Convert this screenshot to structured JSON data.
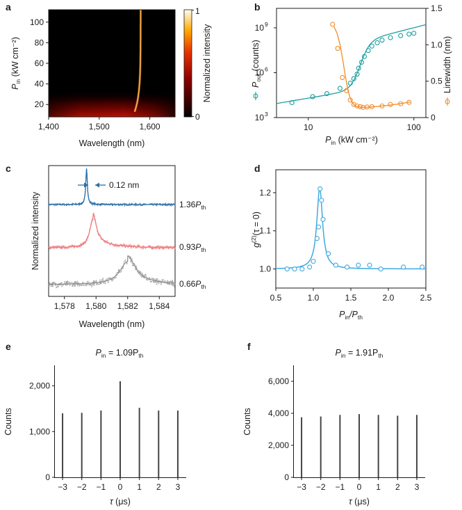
{
  "colors": {
    "teal": "#1e9d9d",
    "orange": "#f08c2a",
    "blue_dark": "#2a6fa8",
    "pink": "#ee7f7f",
    "gray": "#8a8a8a",
    "light_blue": "#3fa9e0",
    "hist": "#444444"
  },
  "chart_data": [
    {
      "panel": "a",
      "type": "heatmap",
      "xlabel": "Wavelength (nm)",
      "ylabel": {
        "main": "P",
        "sub": "in",
        "rest": " (kW cm⁻²)"
      },
      "xlim": [
        1400,
        1650
      ],
      "ylim": [
        8,
        112
      ],
      "xticks": [
        1400,
        1500,
        1600
      ],
      "xtick_labels": [
        "1,400",
        "1,500",
        "1,600"
      ],
      "yticks": [
        20,
        40,
        60,
        80,
        100
      ],
      "colorbar": {
        "label": "Normalized intensity",
        "ticks": [
          0,
          1
        ],
        "tick_labels": [
          "0",
          "1"
        ]
      },
      "lasing_line": {
        "wavelength_low_pin": 1570,
        "wavelength_high_pin": 1582
      }
    },
    {
      "panel": "b",
      "type": "scatter",
      "xscale": "log",
      "xlim": [
        5,
        130
      ],
      "xticks": [
        10,
        100
      ],
      "xtick_labels": [
        "10",
        "100"
      ],
      "xlabel": {
        "main": "P",
        "sub": "in",
        "rest": " (kW cm⁻²)"
      },
      "yleft": {
        "scale": "log",
        "lim": [
          1000,
          20000000000
        ],
        "ticks": [
          1000,
          1000000,
          1000000000
        ],
        "tick_labels": [
          [
            "10",
            "3"
          ],
          [
            "10",
            "6"
          ],
          [
            "10",
            "9"
          ]
        ],
        "label": {
          "main": "P",
          "sub": "out",
          "rest": " (counts)"
        }
      },
      "yright": {
        "lim": [
          0,
          1.5
        ],
        "ticks": [
          0,
          0.5,
          1.0,
          1.5
        ],
        "tick_labels": [
          "0",
          "0.5",
          "1.0",
          "1.5"
        ],
        "label": "Linewidth (nm)"
      },
      "series": [
        {
          "name": "Pout",
          "axis": "left",
          "x": [
            7,
            11,
            15,
            20,
            25,
            27,
            29,
            30,
            32,
            34,
            37,
            40,
            45,
            50,
            60,
            75,
            90,
            100
          ],
          "y": [
            10000,
            25000,
            40000,
            90000,
            200000,
            400000,
            800000,
            2000000,
            5000000,
            12000000,
            30000000,
            60000000,
            100000000,
            150000000,
            220000000,
            300000000,
            380000000,
            430000000
          ]
        },
        {
          "name": "Linewidth",
          "axis": "right",
          "x": [
            17,
            19,
            21,
            23,
            25,
            27,
            29,
            31,
            33,
            36,
            40,
            50,
            60,
            75,
            90
          ],
          "y": [
            1.28,
            0.95,
            0.55,
            0.37,
            0.24,
            0.18,
            0.16,
            0.15,
            0.14,
            0.145,
            0.15,
            0.16,
            0.18,
            0.19,
            0.21
          ]
        }
      ]
    },
    {
      "panel": "c",
      "type": "line",
      "xlabel": "Wavelength (nm)",
      "ylabel": "Normalized intensity",
      "xlim": [
        1577,
        1585
      ],
      "xticks": [
        1578,
        1580,
        1582,
        1584
      ],
      "xtick_labels": [
        "1,578",
        "1,580",
        "1,582",
        "1,584"
      ],
      "annotation": "0.12 nm",
      "series": [
        {
          "name": "1.36",
          "sub": "th",
          "center": 1579.4,
          "fwhm": 0.12
        },
        {
          "name": "0.93",
          "sub": "th",
          "center": 1579.8,
          "fwhm": 0.5
        },
        {
          "name": "0.66",
          "sub": "th",
          "center": 1582.0,
          "fwhm": 1.2
        }
      ]
    },
    {
      "panel": "d",
      "type": "scatter",
      "xlabel": {
        "a": "P",
        "a_sub": "in",
        "b": "/P",
        "b_sub": "th"
      },
      "ylabel": {
        "g": "g",
        "sup": "(2)",
        "rest": "(τ = 0)"
      },
      "xlim": [
        0.5,
        2.5
      ],
      "ylim": [
        0.95,
        1.26
      ],
      "xticks": [
        0.5,
        1.0,
        1.5,
        2.0,
        2.5
      ],
      "xtick_labels": [
        "0.5",
        "1.0",
        "1.5",
        "2.0",
        "2.5"
      ],
      "yticks": [
        1.0,
        1.1,
        1.2
      ],
      "ytick_labels": [
        "1.0",
        "1.1",
        "1.2"
      ],
      "series": [
        {
          "name": "g2",
          "x": [
            0.65,
            0.75,
            0.85,
            0.95,
            1.0,
            1.05,
            1.07,
            1.09,
            1.11,
            1.13,
            1.2,
            1.3,
            1.45,
            1.6,
            1.75,
            1.9,
            2.2,
            2.45
          ],
          "y": [
            1.0,
            1.0,
            1.0,
            1.005,
            1.02,
            1.08,
            1.11,
            1.21,
            1.18,
            1.13,
            1.04,
            1.01,
            1.005,
            1.01,
            1.01,
            1.0,
            1.005,
            1.005
          ]
        }
      ]
    },
    {
      "panel": "e",
      "type": "bar",
      "title": {
        "main": "P",
        "sub": "in",
        "mid": " = 1.09P",
        "sub2": "th"
      },
      "xlabel": {
        "tau": "τ",
        "rest": " (μs)"
      },
      "ylabel": "Counts",
      "xlim": [
        -3.4,
        3.4
      ],
      "ylim": [
        0,
        2450
      ],
      "xticks": [
        -3,
        -2,
        -1,
        0,
        1,
        2,
        3
      ],
      "xtick_labels": [
        "−3",
        "−2",
        "−1",
        "0",
        "1",
        "2",
        "3"
      ],
      "yticks": [
        0,
        1000,
        2000
      ],
      "ytick_labels": [
        "0",
        "1,000",
        "2,000"
      ],
      "categories": [
        -3,
        -2,
        -1,
        0,
        1,
        2,
        3
      ],
      "values": [
        1400,
        1410,
        1460,
        2100,
        1520,
        1460,
        1460
      ]
    },
    {
      "panel": "f",
      "type": "bar",
      "title": {
        "main": "P",
        "sub": "in",
        "mid": " = 1.91P",
        "sub2": "th"
      },
      "xlabel": {
        "tau": "τ",
        "rest": " (μs)"
      },
      "ylabel": "Counts",
      "xlim": [
        -3.4,
        3.4
      ],
      "ylim": [
        0,
        7000
      ],
      "xticks": [
        -3,
        -2,
        -1,
        0,
        1,
        2,
        3
      ],
      "xtick_labels": [
        "−3",
        "−2",
        "−1",
        "0",
        "1",
        "2",
        "3"
      ],
      "yticks": [
        0,
        2000,
        4000,
        6000
      ],
      "ytick_labels": [
        "0",
        "2,000",
        "4,000",
        "6,000"
      ],
      "categories": [
        -3,
        -2,
        -1,
        0,
        1,
        2,
        3
      ],
      "values": [
        3750,
        3800,
        3900,
        3950,
        3900,
        3850,
        3900
      ]
    }
  ]
}
